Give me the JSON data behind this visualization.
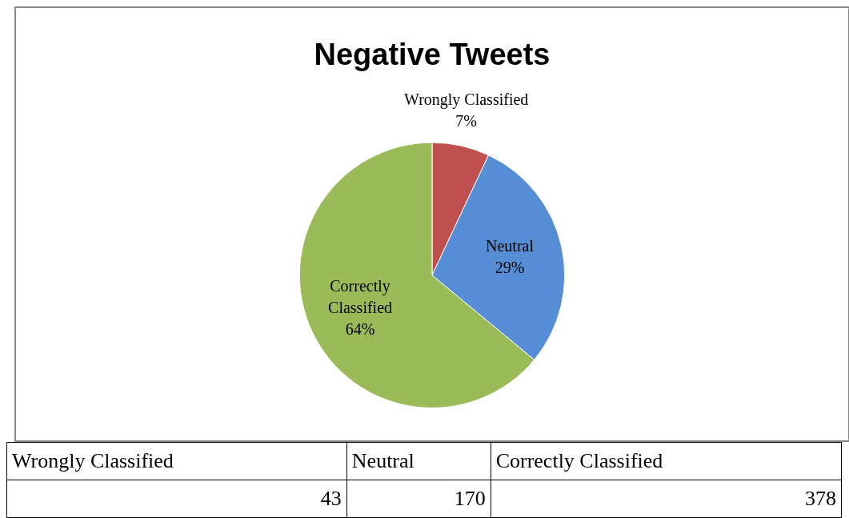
{
  "chart_data": {
    "type": "pie",
    "title": "Negative Tweets",
    "categories": [
      "Wrongly Classified",
      "Neutral",
      "Correctly Classified"
    ],
    "values": [
      7,
      29,
      64
    ],
    "colors": [
      "#c0504d",
      "#558ed5",
      "#9bbb59"
    ],
    "value_labels": [
      "7%",
      "29%",
      "64%"
    ],
    "annotations": [
      "43",
      "170",
      "378"
    ]
  }
}
